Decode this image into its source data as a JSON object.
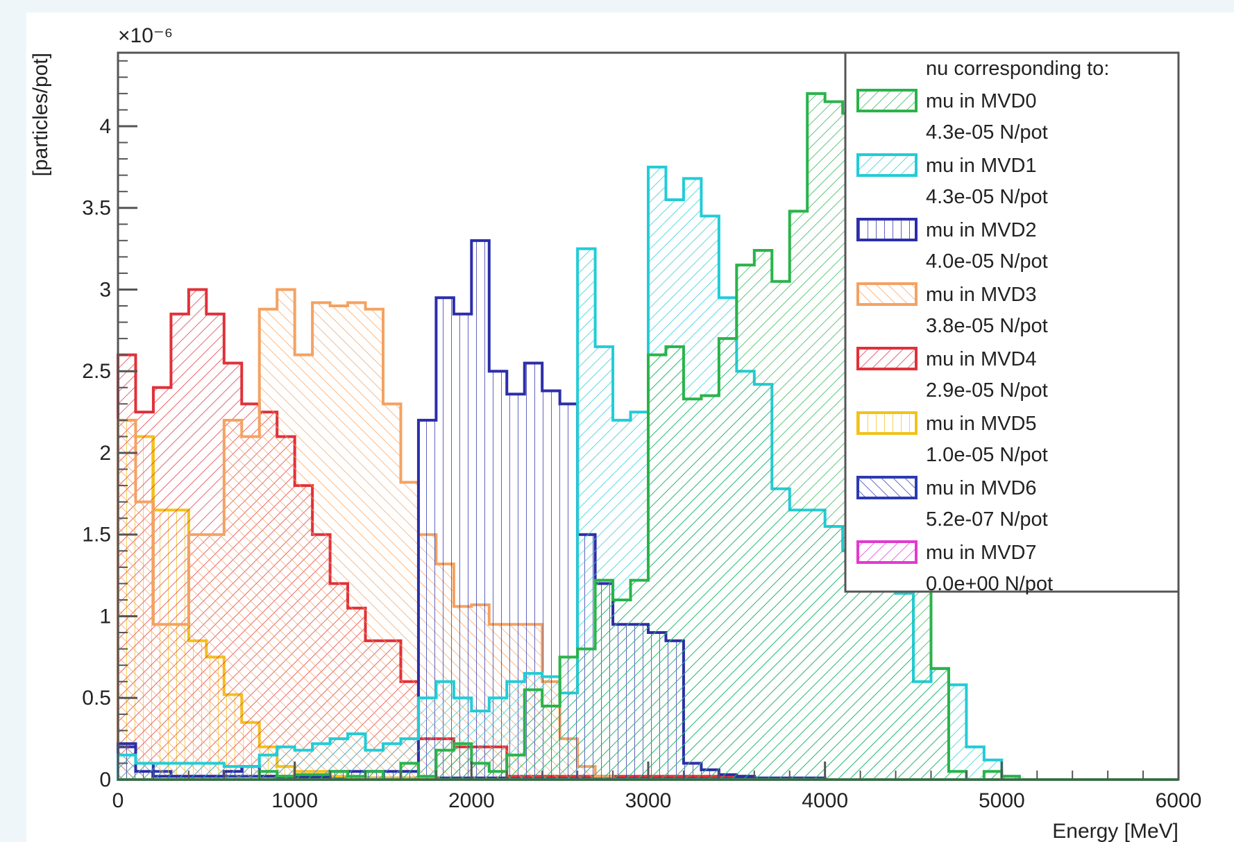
{
  "chart_data": {
    "type": "bar",
    "histogram": true,
    "xlabel": "Energy [MeV]",
    "ylabel": "[particles/pot]",
    "y_multiplier_label": "×10⁻⁶",
    "xlim": [
      0,
      6000
    ],
    "ylim": [
      0,
      4.45
    ],
    "xticks": [
      "0",
      "1000",
      "2000",
      "3000",
      "4000",
      "5000",
      "6000"
    ],
    "yticks": [
      "0",
      "0.5",
      "1",
      "1.5",
      "2",
      "2.5",
      "3",
      "3.5",
      "4"
    ],
    "grid": false,
    "legend_title": "nu corresponding to:",
    "legend_position": "top-right",
    "bin_width": 100,
    "series": [
      {
        "name": "mu in MVD0",
        "rate": "4.3e-05 N/pot",
        "color": "#2ab34a",
        "hatch": "diag-right",
        "values": [
          0,
          0,
          0,
          0,
          0,
          0,
          0,
          0,
          0.05,
          0.02,
          0.03,
          0.03,
          0.05,
          0.02,
          0.05,
          0,
          0.1,
          0.02,
          0.18,
          0.22,
          0.1,
          0.05,
          0.15,
          0.55,
          0.45,
          0.75,
          0.8,
          1.22,
          1.1,
          1.22,
          2.6,
          2.65,
          2.33,
          2.35,
          2.7,
          3.15,
          3.24,
          3.05,
          3.48,
          4.2,
          4.15,
          4.08,
          4.07,
          3.9,
          2.95,
          1.93,
          0.68,
          0.05,
          0,
          0.05,
          0.02,
          0,
          0,
          0,
          0,
          0,
          0,
          0,
          0,
          0
        ]
      },
      {
        "name": "mu in MVD1",
        "rate": "4.3e-05 N/pot",
        "color": "#22ccd6",
        "hatch": "diag-right",
        "values": [
          0.15,
          0.1,
          0.1,
          0.1,
          0.1,
          0.1,
          0.08,
          0.08,
          0.15,
          0.2,
          0.18,
          0.22,
          0.25,
          0.28,
          0.18,
          0.22,
          0.25,
          0.5,
          0.6,
          0.5,
          0.42,
          0.5,
          0.6,
          0.65,
          0.63,
          0.53,
          3.25,
          2.65,
          2.2,
          2.25,
          3.75,
          3.55,
          3.68,
          3.45,
          2.95,
          2.5,
          2.42,
          1.78,
          1.65,
          1.65,
          1.55,
          1.4,
          1.3,
          1.25,
          1.14,
          0.6,
          0.68,
          0.58,
          0.2,
          0.12,
          0.02,
          0,
          0,
          0,
          0,
          0,
          0,
          0,
          0,
          0
        ]
      },
      {
        "name": "mu in MVD2",
        "rate": "4.0e-05 N/pot",
        "color": "#2c2ea8",
        "hatch": "vertical",
        "values": [
          0.22,
          0.05,
          0.02,
          0.02,
          0.02,
          0.02,
          0.05,
          0.08,
          0.02,
          0.02,
          0.02,
          0.02,
          0.05,
          0.05,
          0.05,
          0.05,
          0.05,
          2.2,
          2.95,
          2.85,
          3.3,
          2.5,
          2.36,
          2.55,
          2.38,
          2.3,
          1.5,
          1.2,
          0.95,
          0.95,
          0.9,
          0.85,
          0.1,
          0.06,
          0.03,
          0.02,
          0,
          0,
          0,
          0,
          0,
          0,
          0,
          0,
          0,
          0,
          0,
          0,
          0,
          0,
          0,
          0,
          0,
          0,
          0,
          0,
          0,
          0,
          0,
          0
        ]
      },
      {
        "name": "mu in MVD3",
        "rate": "3.8e-05 N/pot",
        "color": "#f4a262",
        "hatch": "diag-left",
        "values": [
          2.2,
          1.7,
          0.95,
          0.95,
          1.5,
          1.5,
          2.2,
          2.1,
          2.88,
          3.0,
          2.6,
          2.92,
          2.9,
          2.92,
          2.88,
          2.3,
          1.82,
          1.5,
          1.32,
          1.06,
          1.07,
          0.95,
          0.95,
          0.95,
          0.6,
          0.25,
          0.08,
          0.02,
          0,
          0,
          0,
          0,
          0,
          0,
          0,
          0,
          0,
          0,
          0,
          0,
          0,
          0,
          0,
          0,
          0,
          0,
          0,
          0,
          0,
          0,
          0,
          0,
          0,
          0,
          0,
          0,
          0,
          0,
          0,
          0
        ]
      },
      {
        "name": "mu in MVD4",
        "rate": "2.9e-05 N/pot",
        "color": "#e0313a",
        "hatch": "diag-right",
        "values": [
          2.6,
          2.25,
          2.4,
          2.85,
          3.0,
          2.85,
          2.55,
          2.3,
          2.25,
          2.1,
          1.8,
          1.5,
          1.2,
          1.05,
          0.85,
          0.85,
          0.6,
          0.25,
          0.25,
          0.2,
          0.2,
          0.2,
          0.02,
          0.02,
          0.02,
          0.02,
          0.02,
          0.02,
          0.02,
          0.02,
          0.02,
          0.02,
          0.02,
          0.02,
          0.02,
          0.02,
          0,
          0,
          0,
          0,
          0,
          0,
          0,
          0,
          0,
          0,
          0,
          0,
          0,
          0,
          0,
          0,
          0,
          0,
          0,
          0,
          0,
          0,
          0,
          0
        ]
      },
      {
        "name": "mu in MVD5",
        "rate": "1.0e-05 N/pot",
        "color": "#f2c21a",
        "hatch": "vertical",
        "values": [
          2.2,
          2.1,
          1.65,
          1.65,
          0.85,
          0.75,
          0.52,
          0.35,
          0.2,
          0.08,
          0.05,
          0.05,
          0.02,
          0.01,
          0.01,
          0.01,
          0.01,
          0.01,
          0,
          0,
          0,
          0,
          0,
          0,
          0,
          0,
          0,
          0,
          0,
          0,
          0,
          0,
          0,
          0,
          0,
          0,
          0,
          0,
          0,
          0,
          0,
          0,
          0,
          0,
          0,
          0,
          0,
          0,
          0,
          0,
          0,
          0,
          0,
          0,
          0,
          0,
          0,
          0,
          0,
          0
        ]
      },
      {
        "name": "mu in MVD6",
        "rate": "5.2e-07 N/pot",
        "color": "#2c3ab0",
        "hatch": "diag-left",
        "values": [
          0.2,
          0.1,
          0.05,
          0.02,
          0.02,
          0.02,
          0.02,
          0.02,
          0.02,
          0.01,
          0.01,
          0.01,
          0.01,
          0.01,
          0.01,
          0.01,
          0.01,
          0.01,
          0.01,
          0.01,
          0.01,
          0.01,
          0.01,
          0.01,
          0.01,
          0.01,
          0.01,
          0.01,
          0.01,
          0.01,
          0.01,
          0.01,
          0.01,
          0.01,
          0.01,
          0.01,
          0.01,
          0.01,
          0.01,
          0.01,
          0,
          0,
          0,
          0,
          0,
          0,
          0,
          0,
          0,
          0,
          0,
          0,
          0,
          0,
          0,
          0,
          0,
          0,
          0,
          0
        ]
      },
      {
        "name": "mu in MVD7",
        "rate": "0.0e+00 N/pot",
        "color": "#e23ad0",
        "hatch": "diag-right",
        "values": [
          0,
          0,
          0,
          0,
          0,
          0,
          0,
          0,
          0,
          0,
          0,
          0,
          0,
          0,
          0,
          0,
          0,
          0,
          0,
          0,
          0,
          0,
          0,
          0,
          0,
          0,
          0,
          0,
          0,
          0,
          0,
          0,
          0,
          0,
          0,
          0,
          0,
          0,
          0,
          0,
          0,
          0,
          0,
          0,
          0,
          0,
          0,
          0,
          0,
          0,
          0,
          0,
          0,
          0,
          0,
          0,
          0,
          0,
          0,
          0
        ]
      }
    ]
  }
}
